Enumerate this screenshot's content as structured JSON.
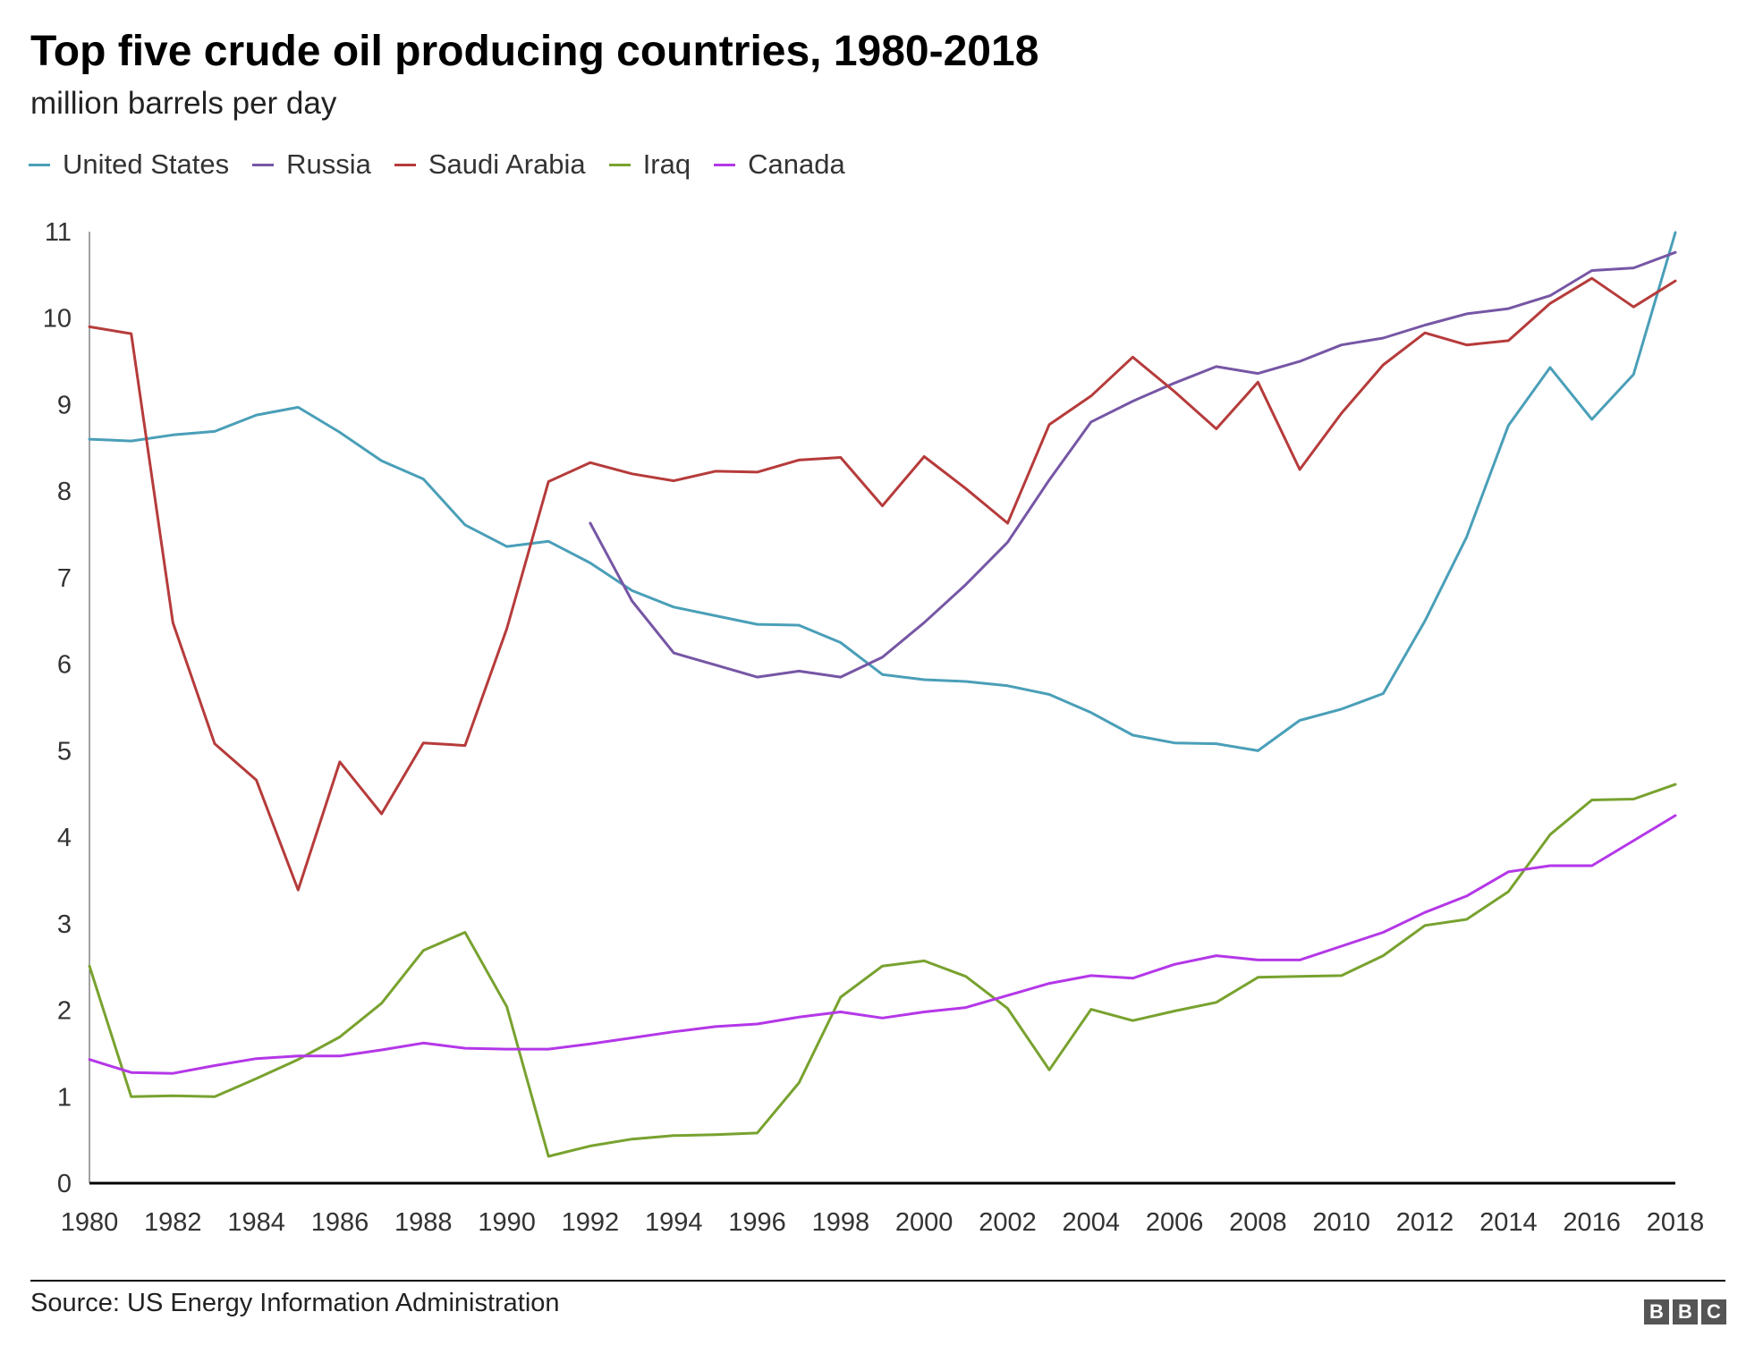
{
  "header": {
    "title": "Top five crude oil producing countries, 1980-2018",
    "subtitle": "million barrels per day"
  },
  "footer": {
    "source": "Source: US Energy Information Administration",
    "logo_letters": [
      "B",
      "B",
      "C"
    ]
  },
  "chart_data": {
    "type": "line",
    "title": "Top five crude oil producing countries, 1980-2018",
    "subtitle": "million barrels per day",
    "xlabel": "",
    "ylabel": "",
    "xlim": [
      1980,
      2018
    ],
    "ylim": [
      0,
      11
    ],
    "x_ticks": [
      "1980",
      "1982",
      "1984",
      "1986",
      "1988",
      "1990",
      "1992",
      "1994",
      "1996",
      "1998",
      "2000",
      "2002",
      "2004",
      "2006",
      "2008",
      "2010",
      "2012",
      "2014",
      "2016",
      "2018"
    ],
    "y_ticks": [
      "0",
      "1",
      "2",
      "3",
      "4",
      "5",
      "6",
      "7",
      "8",
      "9",
      "10",
      "11"
    ],
    "grid": false,
    "legend_position": "top-left",
    "x": [
      1980,
      1981,
      1982,
      1983,
      1984,
      1985,
      1986,
      1987,
      1988,
      1989,
      1990,
      1991,
      1992,
      1993,
      1994,
      1995,
      1996,
      1997,
      1998,
      1999,
      2000,
      2001,
      2002,
      2003,
      2004,
      2005,
      2006,
      2007,
      2008,
      2009,
      2010,
      2011,
      2012,
      2013,
      2014,
      2015,
      2016,
      2017,
      2018
    ],
    "series": [
      {
        "name": "United States",
        "color": "#4a9fb8",
        "values": [
          8.6,
          8.58,
          8.65,
          8.69,
          8.88,
          8.97,
          8.68,
          8.35,
          8.14,
          7.61,
          7.36,
          7.42,
          7.17,
          6.85,
          6.66,
          6.56,
          6.46,
          6.45,
          6.25,
          5.88,
          5.82,
          5.8,
          5.75,
          5.65,
          5.44,
          5.18,
          5.09,
          5.08,
          5.0,
          5.35,
          5.48,
          5.66,
          6.5,
          7.47,
          8.76,
          9.43,
          8.83,
          9.35,
          10.99
        ]
      },
      {
        "name": "Russia",
        "color": "#7656a5",
        "values": [
          null,
          null,
          null,
          null,
          null,
          null,
          null,
          null,
          null,
          null,
          null,
          null,
          7.63,
          6.73,
          6.13,
          5.99,
          5.85,
          5.92,
          5.85,
          6.08,
          6.48,
          6.92,
          7.41,
          8.13,
          8.8,
          9.04,
          9.25,
          9.44,
          9.36,
          9.5,
          9.69,
          9.77,
          9.92,
          10.05,
          10.11,
          10.26,
          10.55,
          10.58,
          10.76
        ]
      },
      {
        "name": "Saudi Arabia",
        "color": "#b63b3b",
        "values": [
          9.9,
          9.82,
          6.48,
          5.08,
          4.66,
          3.39,
          4.87,
          4.27,
          5.09,
          5.06,
          6.41,
          8.11,
          8.33,
          8.2,
          8.12,
          8.23,
          8.22,
          8.36,
          8.39,
          7.83,
          8.4,
          8.03,
          7.63,
          8.77,
          9.1,
          9.55,
          9.15,
          8.72,
          9.26,
          8.25,
          8.9,
          9.46,
          9.83,
          9.69,
          9.74,
          10.17,
          10.46,
          10.13,
          10.43
        ]
      },
      {
        "name": "Iraq",
        "color": "#78a22f",
        "values": [
          2.51,
          1.0,
          1.01,
          1.0,
          1.21,
          1.43,
          1.69,
          2.08,
          2.69,
          2.9,
          2.04,
          0.31,
          0.43,
          0.51,
          0.55,
          0.56,
          0.58,
          1.16,
          2.15,
          2.51,
          2.57,
          2.39,
          2.02,
          1.31,
          2.01,
          1.88,
          1.99,
          2.09,
          2.38,
          2.39,
          2.4,
          2.63,
          2.98,
          3.05,
          3.37,
          4.03,
          4.43,
          4.44,
          4.61
        ]
      },
      {
        "name": "Canada",
        "color": "#b437e8",
        "values": [
          1.43,
          1.28,
          1.27,
          1.36,
          1.44,
          1.47,
          1.47,
          1.54,
          1.62,
          1.56,
          1.55,
          1.55,
          1.61,
          1.68,
          1.75,
          1.81,
          1.84,
          1.92,
          1.98,
          1.91,
          1.98,
          2.03,
          2.17,
          2.31,
          2.4,
          2.37,
          2.53,
          2.63,
          2.58,
          2.58,
          2.74,
          2.9,
          3.13,
          3.32,
          3.6,
          3.67,
          3.67,
          3.96,
          4.25
        ]
      }
    ]
  }
}
